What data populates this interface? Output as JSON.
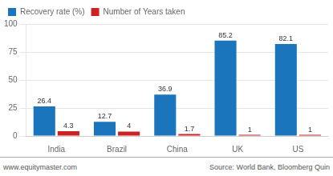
{
  "chart_data": {
    "type": "bar",
    "categories": [
      "India",
      "Brazil",
      "China",
      "UK",
      "US"
    ],
    "series": [
      {
        "name": "Recovery rate (%)",
        "color": "#1b75bc",
        "values": [
          26.4,
          12.7,
          36.9,
          85.2,
          82.1
        ]
      },
      {
        "name": "Number of Years taken",
        "color": "#cc2222",
        "values": [
          4.3,
          4.0,
          1.7,
          1.0,
          1.0
        ],
        "value_labels": [
          "4.3",
          "4",
          "1.7",
          "1",
          "1"
        ]
      }
    ],
    "ylim": [
      0,
      100
    ],
    "yticks": [
      0,
      25,
      50,
      75,
      100
    ],
    "grid": true,
    "legend": "upper left",
    "data_labels": true,
    "annotations": [
      "www.equitymaster.com",
      "Source: World Bank, Bloomberg Quin"
    ]
  }
}
